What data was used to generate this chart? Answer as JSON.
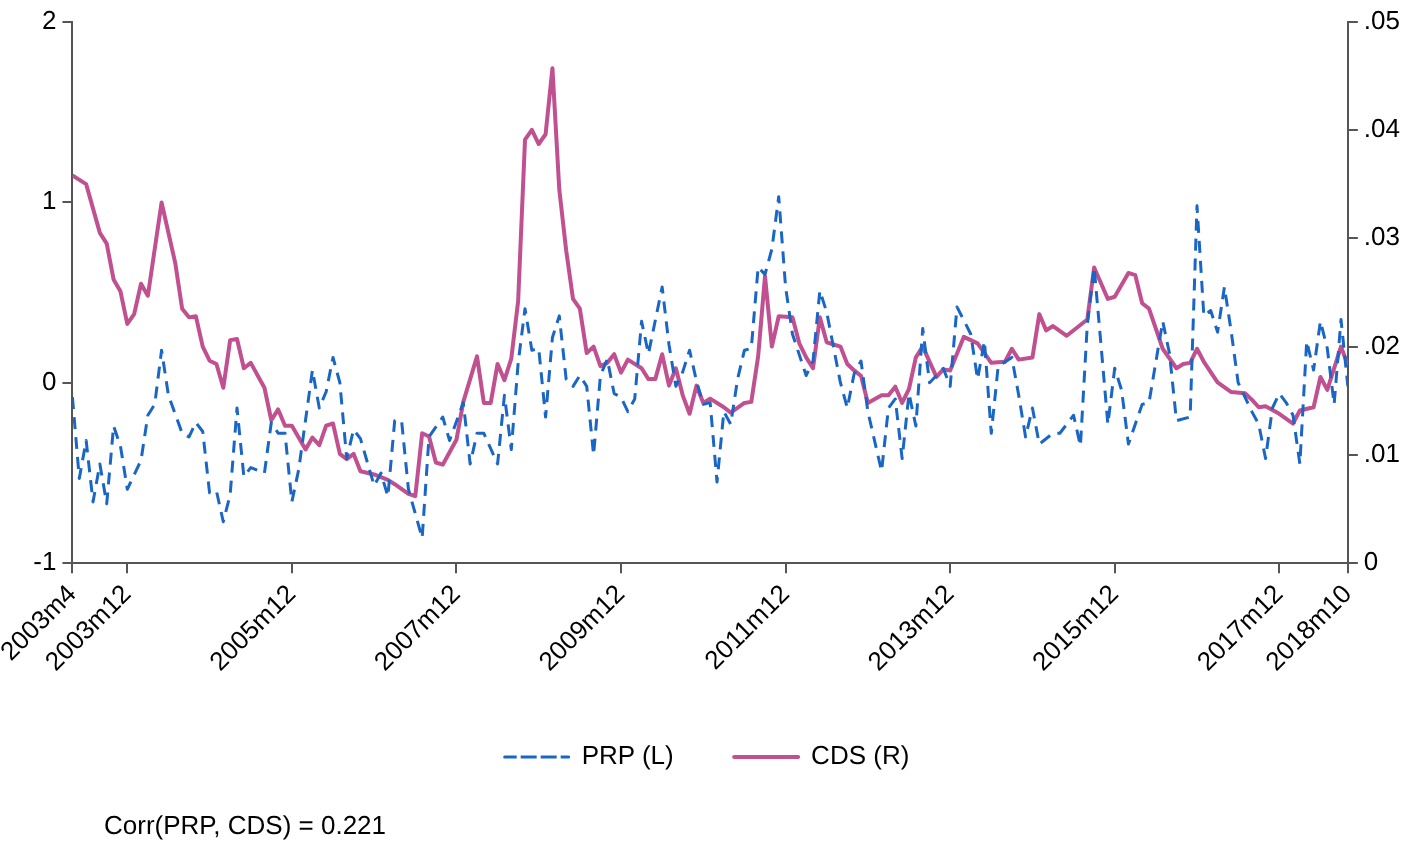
{
  "chart_data": {
    "type": "line",
    "legend": "bottom",
    "marker": "none",
    "annotations": [
      "Corr(PRP, CDS) = 0.221"
    ],
    "xlim": [
      "2003-04",
      "2018-10"
    ],
    "xticks": [
      {
        "value": "2003-04",
        "label": "2003m4"
      },
      {
        "value": "2003-12",
        "label": "2003m12"
      },
      {
        "value": "2005-12",
        "label": "2005m12"
      },
      {
        "value": "2007-12",
        "label": "2007m12"
      },
      {
        "value": "2009-12",
        "label": "2009m12"
      },
      {
        "value": "2011-12",
        "label": "2011m12"
      },
      {
        "value": "2013-12",
        "label": "2013m12"
      },
      {
        "value": "2015-12",
        "label": "2015m12"
      },
      {
        "value": "2017-12",
        "label": "2017m12"
      },
      {
        "value": "2018-10",
        "label": "2018m10"
      }
    ],
    "ylim": [
      -1,
      2
    ],
    "yticks": [
      -1,
      0,
      1,
      2
    ],
    "y2lim": [
      0,
      0.05
    ],
    "y2ticks": [
      0,
      {
        "value": 0.01,
        "label": ".01"
      },
      {
        "value": 0.02,
        "label": ".02"
      },
      {
        "value": 0.03,
        "label": ".03"
      },
      {
        "value": 0.04,
        "label": ".04"
      },
      {
        "value": 0.05,
        "label": ".05"
      }
    ],
    "series": [
      {
        "name": "PRP (L)",
        "color": "#1a66c4",
        "line_style": "dashed",
        "axis": "y",
        "x": [
          "2003-04",
          "2003-05",
          "2003-06",
          "2003-07",
          "2003-08",
          "2003-09",
          "2003-10",
          "2003-11",
          "2003-12",
          "2004-02",
          "2004-03",
          "2004-04",
          "2004-05",
          "2004-06",
          "2004-08",
          "2004-09",
          "2004-10",
          "2004-11",
          "2004-12",
          "2005-01",
          "2005-02",
          "2005-03",
          "2005-04",
          "2005-05",
          "2005-06",
          "2005-08",
          "2005-09",
          "2005-10",
          "2005-11",
          "2005-12",
          "2006-01",
          "2006-03",
          "2006-04",
          "2006-05",
          "2006-06",
          "2006-07",
          "2006-08",
          "2006-09",
          "2006-10",
          "2006-12",
          "2007-01",
          "2007-02",
          "2007-03",
          "2007-04",
          "2007-05",
          "2007-07",
          "2007-08",
          "2007-10",
          "2007-11",
          "2008-01",
          "2008-02",
          "2008-03",
          "2008-04",
          "2008-06",
          "2008-07",
          "2008-08",
          "2008-09",
          "2008-10",
          "2008-11",
          "2008-12",
          "2009-01",
          "2009-02",
          "2009-03",
          "2009-04",
          "2009-05",
          "2009-06",
          "2009-07",
          "2009-08",
          "2009-09",
          "2009-10",
          "2009-11",
          "2009-12",
          "2010-01",
          "2010-02",
          "2010-03",
          "2010-04",
          "2010-06",
          "2010-07",
          "2010-08",
          "2010-09",
          "2010-10",
          "2010-11",
          "2010-12",
          "2011-01",
          "2011-02",
          "2011-03",
          "2011-04",
          "2011-05",
          "2011-06",
          "2011-07",
          "2011-08",
          "2011-09",
          "2011-10",
          "2011-11",
          "2011-12",
          "2012-01",
          "2012-03",
          "2012-04",
          "2012-05",
          "2012-06",
          "2012-08",
          "2012-09",
          "2012-10",
          "2012-11",
          "2012-12",
          "2013-02",
          "2013-03",
          "2013-04",
          "2013-05",
          "2013-06",
          "2013-07",
          "2013-08",
          "2013-09",
          "2013-11",
          "2013-12",
          "2014-01",
          "2014-03",
          "2014-04",
          "2014-05",
          "2014-06",
          "2014-07",
          "2014-09",
          "2014-10",
          "2014-11",
          "2014-12",
          "2015-01",
          "2015-03",
          "2015-04",
          "2015-06",
          "2015-07",
          "2015-08",
          "2015-09",
          "2015-10",
          "2015-11",
          "2015-12",
          "2016-01",
          "2016-02",
          "2016-04",
          "2016-05",
          "2016-07",
          "2016-08",
          "2016-09",
          "2016-11",
          "2016-12",
          "2017-01",
          "2017-02",
          "2017-03",
          "2017-04",
          "2017-05",
          "2017-06",
          "2017-08",
          "2017-09",
          "2017-10",
          "2017-11",
          "2017-12",
          "2018-01",
          "2018-02",
          "2018-03",
          "2018-04",
          "2018-05",
          "2018-06",
          "2018-07",
          "2018-08",
          "2018-09",
          "2018-10"
        ],
        "values": [
          -0.08,
          -0.53,
          -0.32,
          -0.66,
          -0.45,
          -0.67,
          -0.24,
          -0.35,
          -0.59,
          -0.43,
          -0.18,
          -0.12,
          0.18,
          -0.07,
          -0.28,
          -0.3,
          -0.22,
          -0.27,
          -0.61,
          -0.6,
          -0.77,
          -0.62,
          -0.14,
          -0.52,
          -0.47,
          -0.5,
          -0.22,
          -0.28,
          -0.28,
          -0.66,
          -0.48,
          0.07,
          -0.14,
          -0.05,
          0.14,
          0,
          -0.42,
          -0.26,
          -0.31,
          -0.57,
          -0.5,
          -0.63,
          -0.21,
          -0.21,
          -0.59,
          -0.86,
          -0.3,
          -0.19,
          -0.32,
          -0.11,
          -0.45,
          -0.28,
          -0.28,
          -0.45,
          -0.07,
          -0.37,
          0.11,
          0.41,
          0.18,
          0.19,
          -0.19,
          0.25,
          0.37,
          0.02,
          -0.02,
          0.04,
          -0.02,
          -0.4,
          0.04,
          0.13,
          -0.06,
          -0.08,
          -0.16,
          -0.09,
          0.34,
          0.16,
          0.53,
          0.21,
          -0.02,
          0.06,
          0.18,
          0.01,
          -0.12,
          -0.11,
          -0.55,
          -0.16,
          -0.23,
          0.02,
          0.18,
          0.19,
          0.64,
          0.6,
          0.74,
          1.03,
          0.53,
          0.27,
          0.04,
          0.12,
          0.51,
          0.39,
          0,
          -0.14,
          0.05,
          0.12,
          -0.16,
          -0.49,
          -0.14,
          -0.09,
          -0.42,
          -0.06,
          -0.24,
          0.3,
          0,
          0.08,
          -0.02,
          0.42,
          0.27,
          0.02,
          0.23,
          -0.28,
          0.09,
          0.14,
          -0.07,
          -0.3,
          -0.14,
          -0.34,
          -0.28,
          -0.28,
          -0.18,
          -0.35,
          0.32,
          0.64,
          0.21,
          -0.23,
          0.08,
          -0.04,
          -0.34,
          -0.12,
          -0.11,
          0.34,
          0.16,
          -0.21,
          -0.19,
          0.98,
          0.37,
          0.4,
          0.28,
          0.53,
          0.28,
          0,
          -0.16,
          -0.23,
          -0.42,
          -0.14,
          -0.06,
          -0.11,
          -0.18,
          -0.45,
          0.23,
          0.07,
          0.34,
          0.19,
          -0.12,
          0.35,
          -0.02
        ]
      },
      {
        "name": "CDS (R)",
        "color": "#c0508f",
        "line_style": "solid",
        "axis": "y2",
        "x": [
          "2003-04",
          "2003-06",
          "2003-08",
          "2003-09",
          "2003-10",
          "2003-11",
          "2003-12",
          "2004-01",
          "2004-02",
          "2004-03",
          "2004-05",
          "2004-07",
          "2004-08",
          "2004-09",
          "2004-10",
          "2004-11",
          "2004-12",
          "2005-01",
          "2005-02",
          "2005-03",
          "2005-04",
          "2005-05",
          "2005-06",
          "2005-08",
          "2005-09",
          "2005-10",
          "2005-11",
          "2005-12",
          "2006-02",
          "2006-03",
          "2006-04",
          "2006-05",
          "2006-06",
          "2006-07",
          "2006-08",
          "2006-09",
          "2006-10",
          "2006-12",
          "2007-02",
          "2007-03",
          "2007-05",
          "2007-06",
          "2007-07",
          "2007-08",
          "2007-09",
          "2007-10",
          "2007-12",
          "2008-01",
          "2008-03",
          "2008-04",
          "2008-05",
          "2008-06",
          "2008-07",
          "2008-08",
          "2008-09",
          "2008-10",
          "2008-11",
          "2008-12",
          "2009-01",
          "2009-02",
          "2009-03",
          "2009-04",
          "2009-05",
          "2009-06",
          "2009-07",
          "2009-08",
          "2009-09",
          "2009-10",
          "2009-11",
          "2009-12",
          "2010-01",
          "2010-03",
          "2010-04",
          "2010-05",
          "2010-06",
          "2010-07",
          "2010-08",
          "2010-09",
          "2010-10",
          "2010-11",
          "2010-12",
          "2011-01",
          "2011-03",
          "2011-04",
          "2011-06",
          "2011-07",
          "2011-08",
          "2011-09",
          "2011-10",
          "2011-11",
          "2012-01",
          "2012-02",
          "2012-03",
          "2012-04",
          "2012-05",
          "2012-06",
          "2012-08",
          "2012-09",
          "2012-10",
          "2012-11",
          "2012-12",
          "2013-02",
          "2013-03",
          "2013-04",
          "2013-05",
          "2013-06",
          "2013-07",
          "2013-08",
          "2013-10",
          "2013-11",
          "2013-12",
          "2014-02",
          "2014-04",
          "2014-06",
          "2014-08",
          "2014-09",
          "2014-10",
          "2014-12",
          "2015-01",
          "2015-02",
          "2015-03",
          "2015-05",
          "2015-08",
          "2015-09",
          "2015-11",
          "2015-12",
          "2016-02",
          "2016-03",
          "2016-04",
          "2016-05",
          "2016-07",
          "2016-09",
          "2016-10",
          "2016-11",
          "2016-12",
          "2017-01",
          "2017-03",
          "2017-05",
          "2017-07",
          "2017-08",
          "2017-09",
          "2017-10",
          "2017-12",
          "2018-02",
          "2018-03",
          "2018-05",
          "2018-06",
          "2018-07",
          "2018-09",
          "2018-10"
        ],
        "values": [
          0.0358,
          0.035,
          0.0305,
          0.0295,
          0.0262,
          0.0251,
          0.0221,
          0.023,
          0.0258,
          0.0247,
          0.0333,
          0.0277,
          0.0235,
          0.0227,
          0.0228,
          0.02,
          0.0187,
          0.0184,
          0.0162,
          0.0206,
          0.0207,
          0.018,
          0.0185,
          0.0162,
          0.0132,
          0.0142,
          0.0127,
          0.0127,
          0.0105,
          0.0116,
          0.0109,
          0.0127,
          0.0129,
          0.0101,
          0.0096,
          0.0101,
          0.0085,
          0.0082,
          0.0077,
          0.0073,
          0.0064,
          0.0062,
          0.012,
          0.0117,
          0.0093,
          0.0091,
          0.0114,
          0.0149,
          0.0191,
          0.0148,
          0.0148,
          0.0184,
          0.0169,
          0.0189,
          0.0242,
          0.0391,
          0.04,
          0.0387,
          0.0396,
          0.0457,
          0.0345,
          0.0289,
          0.0244,
          0.0235,
          0.0194,
          0.02,
          0.0182,
          0.0185,
          0.0193,
          0.0176,
          0.0188,
          0.018,
          0.017,
          0.017,
          0.0193,
          0.0164,
          0.018,
          0.0155,
          0.0138,
          0.0164,
          0.0148,
          0.0152,
          0.0144,
          0.0139,
          0.0148,
          0.0149,
          0.0191,
          0.0265,
          0.02,
          0.0228,
          0.0227,
          0.0203,
          0.019,
          0.018,
          0.0227,
          0.0204,
          0.02,
          0.0184,
          0.0178,
          0.0173,
          0.0148,
          0.0155,
          0.0155,
          0.0163,
          0.0148,
          0.0161,
          0.019,
          0.02,
          0.0172,
          0.0179,
          0.0178,
          0.0209,
          0.0203,
          0.0185,
          0.0186,
          0.0198,
          0.0188,
          0.019,
          0.023,
          0.0215,
          0.0219,
          0.021,
          0.0225,
          0.0273,
          0.0244,
          0.0246,
          0.0268,
          0.0266,
          0.024,
          0.0235,
          0.0198,
          0.018,
          0.0184,
          0.0185,
          0.0198,
          0.0186,
          0.0167,
          0.0158,
          0.0157,
          0.0151,
          0.0144,
          0.0145,
          0.0138,
          0.0129,
          0.0141,
          0.0144,
          0.0172,
          0.016,
          0.02,
          0.0183
        ]
      }
    ]
  }
}
